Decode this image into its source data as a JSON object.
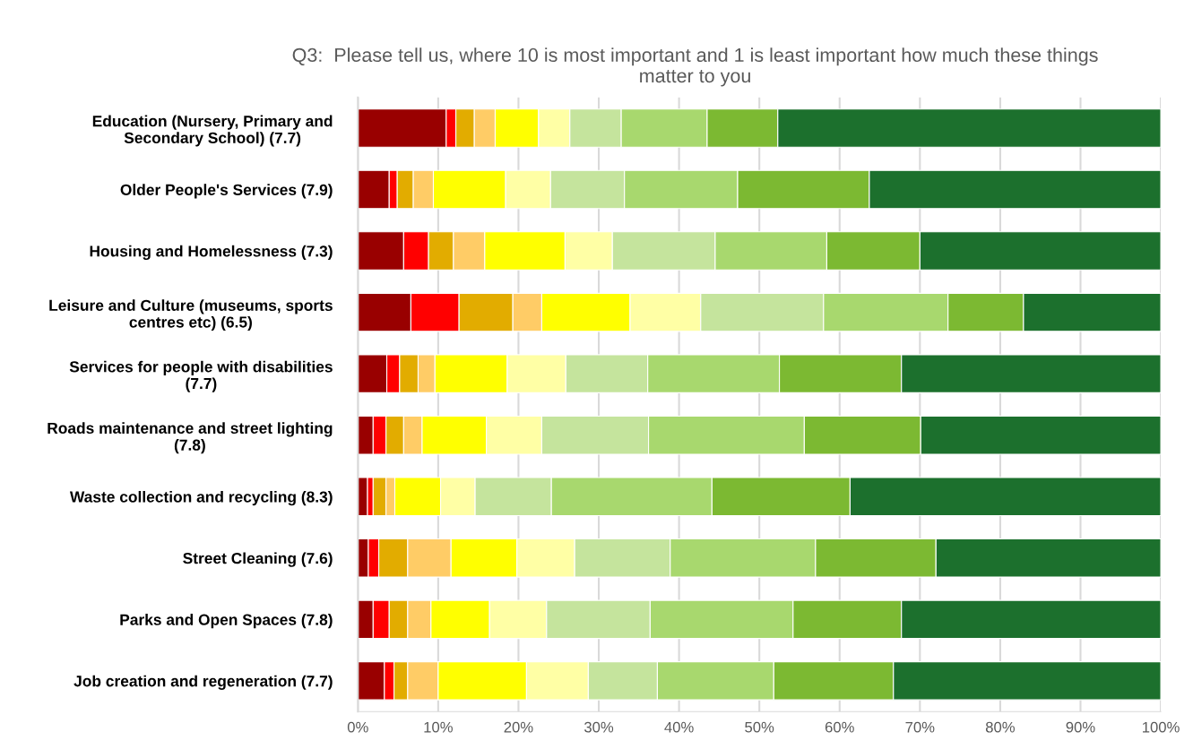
{
  "chart_data": {
    "type": "bar",
    "orientation": "horizontal",
    "stacked": true,
    "title": "Q3:  Please tell us, where 10 is most important and 1 is least important how much these things\nmatter to you",
    "categories": [
      "Education (Nursery, Primary and\nSecondary School) (7.7)",
      "Older People's Services (7.9)",
      "Housing and Homelessness (7.3)",
      "Leisure and Culture (museums, sports\ncentres etc) (6.5)",
      "Services for people with disabilities\n(7.7)",
      "Roads maintenance and street lighting\n(7.8)",
      "Waste collection and recycling (8.3)",
      "Street Cleaning (7.6)",
      "Parks and Open Spaces (7.8)",
      "Job creation and regeneration (7.7)"
    ],
    "series": [
      {
        "color": "#990000",
        "values": [
          11.0,
          3.9,
          5.7,
          6.6,
          3.6,
          1.9,
          1.2,
          1.3,
          1.9,
          3.3
        ]
      },
      {
        "color": "#ff0000",
        "values": [
          1.2,
          1.0,
          3.1,
          6.0,
          1.6,
          1.6,
          0.7,
          1.3,
          2.0,
          1.2
        ]
      },
      {
        "color": "#e2ac00",
        "values": [
          2.3,
          2.0,
          3.1,
          6.7,
          2.3,
          2.2,
          1.6,
          3.6,
          2.3,
          1.7
        ]
      },
      {
        "color": "#ffcc66",
        "values": [
          2.6,
          2.5,
          3.9,
          3.6,
          2.1,
          2.3,
          1.1,
          5.4,
          2.9,
          3.8
        ]
      },
      {
        "color": "#ffff00",
        "values": [
          5.4,
          9.0,
          10.0,
          11.0,
          9.0,
          8.0,
          5.7,
          8.2,
          7.3,
          11.0
        ]
      },
      {
        "color": "#ffffa5",
        "values": [
          3.9,
          5.6,
          5.9,
          8.8,
          7.3,
          6.9,
          4.3,
          7.2,
          7.1,
          7.7
        ]
      },
      {
        "color": "#c5e49d",
        "values": [
          6.4,
          9.2,
          12.8,
          15.3,
          10.2,
          13.3,
          9.5,
          11.9,
          12.9,
          8.6
        ]
      },
      {
        "color": "#a8d86e",
        "values": [
          10.7,
          14.1,
          13.9,
          15.5,
          16.4,
          19.4,
          20.0,
          18.1,
          17.8,
          14.5
        ]
      },
      {
        "color": "#7cb932",
        "values": [
          8.8,
          16.4,
          11.6,
          9.4,
          15.2,
          14.5,
          17.2,
          15.0,
          13.5,
          14.9
        ]
      },
      {
        "color": "#1c702d",
        "values": [
          47.7,
          36.3,
          30.0,
          17.1,
          32.3,
          29.9,
          38.7,
          28.0,
          32.3,
          33.3
        ]
      }
    ],
    "xlim": [
      0,
      100
    ],
    "xticks": [
      {
        "value": 0,
        "label": "0%"
      },
      {
        "value": 10,
        "label": "10%"
      },
      {
        "value": 20,
        "label": "20%"
      },
      {
        "value": 30,
        "label": "30%"
      },
      {
        "value": 40,
        "label": "40%"
      },
      {
        "value": 50,
        "label": "50%"
      },
      {
        "value": 60,
        "label": "60%"
      },
      {
        "value": 70,
        "label": "70%"
      },
      {
        "value": 80,
        "label": "80%"
      },
      {
        "value": 90,
        "label": "90%"
      },
      {
        "value": 100,
        "label": "100%"
      }
    ],
    "grid": "x",
    "legend": false
  }
}
